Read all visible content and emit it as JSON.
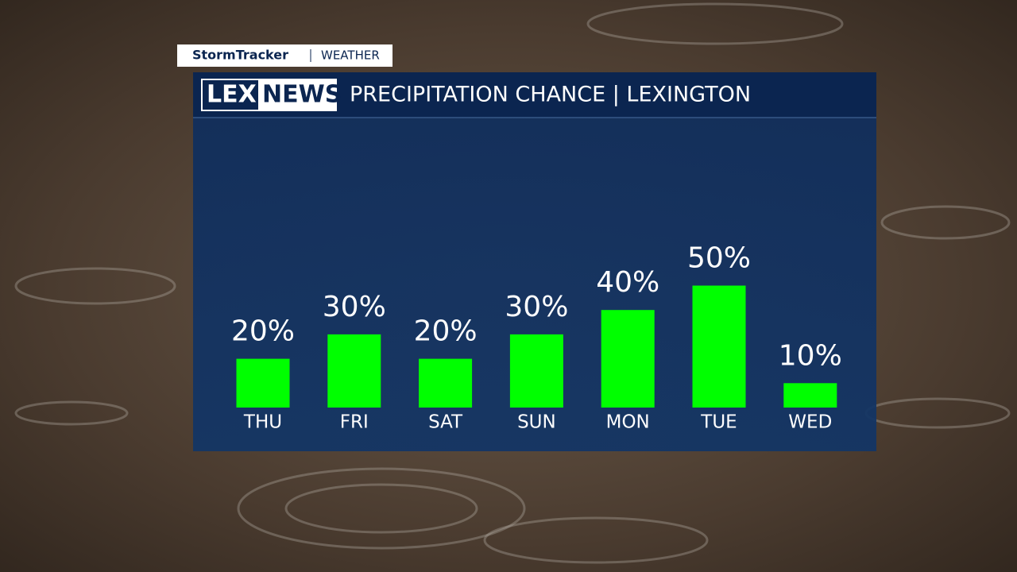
{
  "header": {
    "brand": "StormTracker",
    "section": "WEATHER",
    "logo": [
      "LEX",
      "NEWS"
    ]
  },
  "chart_data": {
    "type": "bar",
    "title": "PRECIPITATION CHANCE | LEXINGTON",
    "categories": [
      "THU",
      "FRI",
      "SAT",
      "SUN",
      "MON",
      "TUE",
      "WED"
    ],
    "values": [
      20,
      30,
      20,
      30,
      40,
      50,
      10
    ],
    "value_labels": [
      "20%",
      "30%",
      "20%",
      "30%",
      "40%",
      "50%",
      "10%"
    ],
    "color": "#00ff00"
  }
}
